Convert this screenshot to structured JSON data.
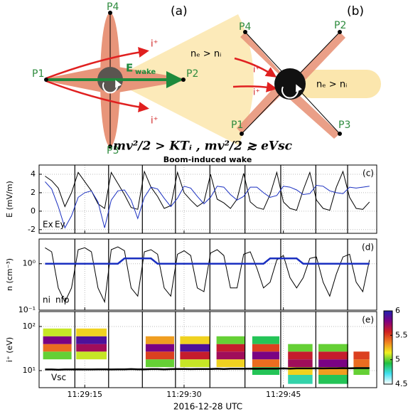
{
  "diagram_a": {
    "label": "(a)",
    "probes": [
      "P1",
      "P2",
      "P3",
      "P4"
    ],
    "ion_labels": [
      "i⁺",
      "i⁺"
    ],
    "density": "nₑ > nᵢ",
    "field": "E",
    "field_sub": "wake"
  },
  "diagram_b": {
    "label": "(b)",
    "probes": [
      "P1",
      "P2",
      "P3",
      "P4"
    ],
    "ion_labels": [
      "i⁺",
      "i⁺"
    ],
    "density": "nₑ > nᵢ"
  },
  "formula": "mv²/2 > KTᵢ , mv²/2 ≳ eVsc",
  "title": "Boom-induced wake",
  "spin_lines": [
    13.5,
    18.6,
    23.7,
    28.7,
    33.9,
    39.2,
    44.6,
    49.9,
    54.7
  ],
  "chart_data": [
    {
      "type": "line",
      "panel_label": "(c)",
      "ylabel": "E (mV/m)",
      "xlim": [
        8.1,
        59.1
      ],
      "xticks": [
        15,
        30,
        45
      ],
      "ylim": [
        -2.4,
        5
      ],
      "yticks": [
        -2,
        0,
        2,
        4
      ],
      "log": false,
      "grid": true,
      "x": [
        9,
        10,
        11,
        12,
        13,
        14,
        15,
        16,
        17,
        18,
        19,
        20,
        21,
        22,
        23,
        24,
        25,
        26,
        27,
        28,
        29,
        30,
        31,
        32,
        33,
        34,
        35,
        36,
        37,
        38,
        39,
        40,
        41,
        42,
        43,
        44,
        45,
        46,
        47,
        48,
        49,
        50,
        51,
        52,
        53,
        54,
        55,
        56,
        57,
        58
      ],
      "series": [
        {
          "name": "Ex",
          "color": "#000000",
          "values": [
            3.8,
            3.3,
            2.5,
            0.5,
            2.0,
            4.2,
            3.2,
            2.2,
            0.8,
            0.3,
            4.2,
            3.0,
            1.8,
            0.4,
            0.2,
            4.3,
            2.6,
            1.6,
            0.3,
            0.6,
            4.2,
            2.0,
            1.2,
            0.5,
            1.0,
            4.0,
            1.3,
            0.9,
            0.3,
            1.3,
            4.1,
            1.0,
            0.4,
            0.2,
            1.8,
            4.2,
            1.0,
            0.3,
            0.1,
            2.3,
            4.2,
            1.2,
            0.3,
            0.1,
            2.6,
            4.3,
            1.5,
            0.3,
            0.2,
            1.0
          ]
        },
        {
          "name": "Ey",
          "color": "#1a2fc0",
          "values": [
            3.2,
            2.4,
            0.5,
            -1.8,
            -0.5,
            1.5,
            2.0,
            2.2,
            1.0,
            -1.8,
            1.2,
            2.2,
            2.3,
            1.2,
            -0.8,
            1.5,
            2.6,
            2.4,
            1.4,
            0.5,
            1.4,
            2.7,
            2.5,
            1.6,
            0.8,
            1.5,
            2.7,
            2.6,
            1.8,
            1.2,
            1.6,
            2.6,
            2.6,
            2.0,
            1.5,
            1.7,
            2.7,
            2.6,
            2.3,
            1.8,
            1.9,
            2.8,
            2.7,
            2.2,
            2.0,
            1.9,
            2.6,
            2.5,
            2.6,
            2.7
          ]
        }
      ]
    },
    {
      "type": "line",
      "panel_label": "(d)",
      "ylabel": "n (cm⁻³)",
      "xlim": [
        8.1,
        59.1
      ],
      "xticks": [
        15,
        30,
        45
      ],
      "ylim": [
        0.1,
        3.4
      ],
      "yticks": [
        {
          "value": 0.1,
          "label": "10⁻¹"
        },
        {
          "value": 1,
          "label": "10⁰"
        }
      ],
      "log": true,
      "grid": true,
      "x": [
        9,
        10,
        11,
        12,
        13,
        14,
        15,
        16,
        17,
        18,
        19,
        20,
        21,
        22,
        23,
        24,
        25,
        26,
        27,
        28,
        29,
        30,
        31,
        32,
        33,
        34,
        35,
        36,
        37,
        38,
        39,
        40,
        41,
        42,
        43,
        44,
        45,
        46,
        47,
        48,
        49,
        50,
        51,
        52,
        53,
        54,
        55,
        56,
        57,
        58
      ],
      "series": [
        {
          "name": "ni",
          "color": "#000000",
          "values": [
            2.2,
            1.8,
            0.3,
            0.15,
            0.3,
            2.0,
            2.2,
            1.8,
            0.3,
            0.15,
            2.0,
            2.3,
            1.9,
            0.3,
            0.2,
            1.8,
            2.0,
            1.6,
            0.3,
            0.2,
            1.6,
            1.9,
            1.5,
            0.3,
            0.25,
            1.7,
            2.0,
            1.5,
            0.3,
            0.3,
            1.6,
            1.8,
            0.8,
            0.3,
            0.4,
            1.2,
            1.5,
            0.5,
            0.3,
            0.5,
            1.3,
            1.4,
            0.4,
            0.2,
            0.6,
            1.4,
            1.6,
            0.4,
            0.25,
            1.2
          ]
        },
        {
          "name": "nfp",
          "color": "#1a2fc0",
          "values": [
            1,
            1,
            1,
            1,
            1,
            1,
            1,
            1,
            1,
            1,
            1,
            1,
            1.3,
            1.3,
            1.3,
            1.3,
            1.3,
            1,
            1,
            1,
            1,
            1,
            1,
            1,
            1,
            1,
            1,
            1,
            1,
            1,
            1,
            1,
            1,
            1,
            1.3,
            1.3,
            1.3,
            1.3,
            1.3,
            1,
            1,
            1,
            1,
            1,
            1,
            1,
            1,
            1,
            1,
            1
          ]
        }
      ]
    },
    {
      "type": "spectrogram",
      "panel_label": "(e)",
      "ylabel": "i⁺ (eV)",
      "xlim": [
        8.1,
        59.1
      ],
      "xticks": [
        {
          "value": 15,
          "label": "11:29:15"
        },
        {
          "value": 30,
          "label": "11:29:30"
        },
        {
          "value": 45,
          "label": "11:29:45"
        }
      ],
      "xlabel": "2016-12-28 UTC",
      "ylim": [
        4.1,
        218
      ],
      "yticks": [
        {
          "value": 10,
          "label": "10¹"
        },
        {
          "value": 100,
          "label": "10²"
        }
      ],
      "log": true,
      "grid": true,
      "x": [
        9,
        10,
        11,
        12,
        13,
        14,
        15,
        16,
        17,
        18,
        19,
        20,
        21,
        22,
        23,
        24,
        25,
        26,
        27,
        28,
        29,
        30,
        31,
        32,
        33,
        34,
        35,
        36,
        37,
        38,
        39,
        40,
        41,
        42,
        43,
        44,
        45,
        46,
        47,
        48,
        49,
        50,
        51,
        52,
        53,
        54,
        55,
        56,
        57,
        58
      ],
      "series": [
        {
          "name": "Vsc",
          "color": "#000000",
          "values": [
            10.6,
            10.6,
            10.5,
            10.6,
            10.6,
            10.7,
            10.6,
            10.6,
            10.7,
            10.7,
            10.6,
            10.7,
            10.7,
            10.8,
            10.7,
            10.7,
            10.8,
            10.8,
            10.7,
            10.8,
            10.9,
            10.9,
            10.8,
            10.9,
            10.9,
            10.9,
            11.0,
            10.9,
            11.0,
            11.0,
            11.0,
            11.1,
            11.0,
            11.1,
            11.1,
            11.1,
            11.2,
            11.1,
            11.2,
            11.2,
            11.2,
            11.3,
            11.2,
            11.3,
            11.3,
            11.4,
            11.3,
            11.4,
            11.4,
            11.4
          ]
        }
      ],
      "energy_edges": [
        5,
        8,
        12,
        18,
        27,
        40,
        60,
        90
      ],
      "bursts": [
        {
          "t": [
            8.7,
            13.0
          ],
          "flux": [
            null,
            null,
            null,
            5.0,
            5.4,
            5.8,
            5.1
          ]
        },
        {
          "t": [
            13.7,
            18.3
          ],
          "flux": [
            null,
            null,
            null,
            5.1,
            5.7,
            5.9,
            5.2
          ]
        },
        {
          "t": [
            24.2,
            28.5
          ],
          "flux": [
            null,
            null,
            5.0,
            5.5,
            5.8,
            5.3,
            null
          ]
        },
        {
          "t": [
            29.4,
            33.9
          ],
          "flux": [
            null,
            null,
            5.1,
            5.6,
            5.9,
            5.2,
            null
          ]
        },
        {
          "t": [
            34.9,
            39.2
          ],
          "flux": [
            null,
            null,
            5.2,
            5.7,
            5.6,
            5.0,
            null
          ]
        },
        {
          "t": [
            40.3,
            44.4
          ],
          "flux": [
            null,
            4.9,
            5.4,
            5.8,
            5.5,
            4.9,
            null
          ]
        },
        {
          "t": [
            45.7,
            49.4
          ],
          "flux": [
            4.8,
            5.2,
            5.7,
            5.6,
            5.0,
            null,
            null
          ]
        },
        {
          "t": [
            50.3,
            54.8
          ],
          "flux": [
            4.9,
            5.3,
            5.8,
            5.6,
            5.0,
            null,
            null
          ]
        },
        {
          "t": [
            55.6,
            58.0
          ],
          "flux": [
            null,
            5.0,
            5.4,
            5.5,
            null,
            null,
            null
          ]
        }
      ],
      "clim": [
        4.5,
        6
      ],
      "cticks": [
        4.5,
        5,
        5.5,
        6
      ],
      "colormap": [
        "#ffffff",
        "#40e0f0",
        "#20c040",
        "#f0f020",
        "#f08020",
        "#d02020",
        "#800080",
        "#2020b0"
      ]
    }
  ]
}
